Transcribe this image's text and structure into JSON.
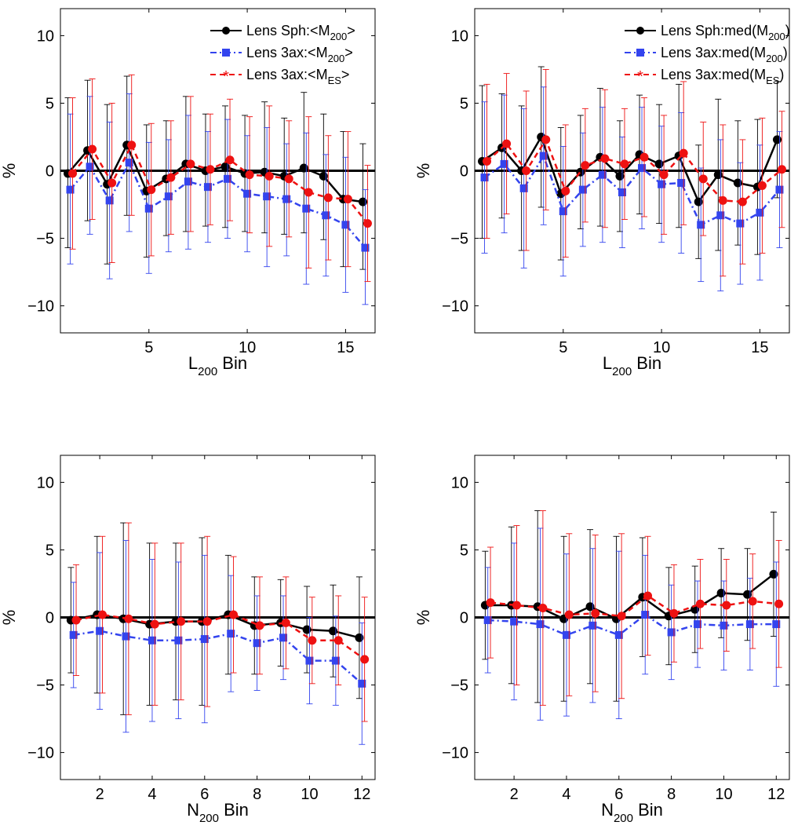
{
  "colors": {
    "black": "#000000",
    "blue": "#3344ee",
    "red": "#ee1111"
  },
  "chart_data": [
    {
      "type": "line",
      "panel": "top-left",
      "xlabel": "L",
      "xlabel_sub": "200",
      "xlabel_suffix": " Bin",
      "ylabel": "%",
      "xlim": [
        0.5,
        16.5
      ],
      "ylim": [
        -12,
        12
      ],
      "xticks": [
        5,
        10,
        15
      ],
      "yticks": [
        -10,
        -5,
        0,
        5,
        10
      ],
      "legend_position": "top-right",
      "series": [
        {
          "name": "Lens Sph:<M200>",
          "legend_main": "Lens Sph:<M",
          "legend_sub": "200",
          "legend_tail": ">",
          "color": "#000000",
          "marker": "circle",
          "linestyle": "solid",
          "offset": -0.12,
          "x": [
            1,
            2,
            3,
            4,
            5,
            6,
            7,
            8,
            9,
            10,
            11,
            12,
            13,
            14,
            15,
            16
          ],
          "y": [
            -0.2,
            1.5,
            -1.0,
            1.9,
            -1.5,
            -0.6,
            0.5,
            0.0,
            0.3,
            -0.2,
            -0.1,
            -0.4,
            0.2,
            -0.4,
            -2.1,
            -2.3
          ],
          "err_low": [
            5.5,
            5.2,
            5.9,
            5.2,
            4.9,
            4.2,
            5.0,
            4.1,
            4.5,
            4.3,
            4.5,
            4.3,
            4.8,
            4.7,
            5.0,
            5.0
          ],
          "err_high": [
            5.6,
            5.2,
            5.9,
            5.1,
            4.9,
            4.3,
            5.0,
            4.2,
            4.5,
            4.3,
            5.2,
            4.3,
            5.6,
            4.6,
            5.0,
            4.3
          ]
        },
        {
          "name": "Lens 3ax:<M200>",
          "legend_main": "Lens 3ax:<M",
          "legend_sub": "200",
          "legend_tail": ">",
          "color": "#3344ee",
          "marker": "square",
          "linestyle": "dashdot",
          "offset": 0,
          "x": [
            1,
            2,
            3,
            4,
            5,
            6,
            7,
            8,
            9,
            10,
            11,
            12,
            13,
            14,
            15,
            16
          ],
          "y": [
            -1.4,
            0.3,
            -2.2,
            0.6,
            -2.8,
            -1.9,
            -0.8,
            -1.2,
            -0.6,
            -1.7,
            -1.9,
            -2.1,
            -2.8,
            -3.3,
            -4.0,
            -5.7
          ],
          "err_low": [
            5.5,
            5.0,
            5.8,
            5.1,
            4.8,
            4.1,
            5.0,
            4.1,
            4.4,
            4.3,
            5.2,
            4.2,
            5.6,
            4.5,
            5.0,
            4.2
          ],
          "err_high": [
            5.6,
            5.2,
            5.8,
            5.1,
            4.9,
            4.2,
            4.9,
            4.1,
            4.4,
            4.3,
            5.1,
            4.1,
            5.6,
            4.5,
            5.0,
            4.3
          ]
        },
        {
          "name": "Lens 3ax:<MES>",
          "legend_main": "Lens 3ax:<M",
          "legend_sub": "ES",
          "legend_tail": ">",
          "color": "#ee1111",
          "marker": "circle",
          "linestyle": "dashed",
          "offset": 0.12,
          "x": [
            1,
            2,
            3,
            4,
            5,
            6,
            7,
            8,
            9,
            10,
            11,
            12,
            13,
            14,
            15,
            16
          ],
          "y": [
            -0.2,
            1.6,
            -0.9,
            1.9,
            -1.4,
            -0.5,
            0.5,
            0.1,
            0.8,
            -0.3,
            -0.4,
            -0.6,
            -1.6,
            -2.0,
            -2.1,
            -3.9
          ],
          "err_low": [
            5.6,
            5.2,
            5.9,
            5.2,
            4.9,
            4.2,
            5.0,
            4.1,
            4.5,
            4.3,
            5.2,
            4.3,
            5.6,
            4.6,
            5.0,
            4.3
          ],
          "err_high": [
            5.6,
            5.2,
            5.9,
            5.2,
            4.9,
            4.2,
            5.0,
            4.1,
            4.5,
            4.3,
            5.2,
            4.3,
            5.6,
            4.6,
            5.0,
            4.3
          ]
        }
      ]
    },
    {
      "type": "line",
      "panel": "top-right",
      "xlabel": "L",
      "xlabel_sub": "200",
      "xlabel_suffix": " Bin",
      "ylabel": "%",
      "xlim": [
        0.5,
        16.5
      ],
      "ylim": [
        -12,
        12
      ],
      "xticks": [
        5,
        10,
        15
      ],
      "yticks": [
        -10,
        -5,
        0,
        5,
        10
      ],
      "legend_position": "top-right",
      "series": [
        {
          "name": "Lens Sph:med(M200)",
          "legend_main": "Lens Sph:med(M",
          "legend_sub": "200",
          "legend_tail": ")",
          "color": "#000000",
          "marker": "circle",
          "linestyle": "solid",
          "offset": -0.12,
          "x": [
            1,
            2,
            3,
            4,
            5,
            6,
            7,
            8,
            9,
            10,
            11,
            12,
            13,
            14,
            15,
            16
          ],
          "y": [
            0.7,
            1.7,
            0.0,
            2.5,
            -1.7,
            -0.1,
            1.0,
            -0.4,
            1.2,
            0.5,
            1.1,
            -2.3,
            -0.3,
            -0.9,
            -1.2,
            2.3
          ],
          "err_low": [
            5.7,
            5.2,
            5.9,
            5.2,
            4.9,
            4.2,
            5.1,
            4.1,
            4.4,
            4.4,
            5.3,
            4.2,
            5.6,
            4.6,
            5.0,
            4.3
          ],
          "err_high": [
            5.6,
            4.0,
            4.8,
            5.2,
            4.9,
            4.2,
            5.1,
            4.1,
            4.4,
            4.4,
            5.3,
            4.2,
            5.6,
            4.6,
            5.0,
            4.3
          ]
        },
        {
          "name": "Lens 3ax:med(M200)",
          "legend_main": "Lens 3ax:med(M",
          "legend_sub": "200",
          "legend_tail": ")",
          "color": "#3344ee",
          "marker": "square",
          "linestyle": "dashdot",
          "offset": 0,
          "x": [
            1,
            2,
            3,
            4,
            5,
            6,
            7,
            8,
            9,
            10,
            11,
            12,
            13,
            14,
            15,
            16
          ],
          "y": [
            -0.5,
            0.5,
            -1.3,
            1.1,
            -3.0,
            -1.4,
            -0.3,
            -1.6,
            0.2,
            -1.0,
            -0.9,
            -4.0,
            -3.3,
            -3.9,
            -3.1,
            -1.4
          ],
          "err_low": [
            5.6,
            5.1,
            5.9,
            5.1,
            4.8,
            4.2,
            5.0,
            4.1,
            4.5,
            4.3,
            5.2,
            4.2,
            5.6,
            4.5,
            5.0,
            4.3
          ],
          "err_high": [
            5.6,
            5.1,
            5.9,
            5.1,
            4.8,
            4.2,
            5.0,
            4.1,
            4.5,
            4.3,
            5.2,
            4.2,
            5.6,
            4.5,
            5.0,
            4.3
          ]
        },
        {
          "name": "Lens 3ax:med(MES)",
          "legend_main": "Lens 3ax:med(M",
          "legend_sub": "ES",
          "legend_tail": ")",
          "color": "#ee1111",
          "marker": "circle",
          "linestyle": "dashed",
          "offset": 0.12,
          "x": [
            1,
            2,
            3,
            4,
            5,
            6,
            7,
            8,
            9,
            10,
            11,
            12,
            13,
            14,
            15,
            16
          ],
          "y": [
            0.7,
            2.0,
            0.0,
            2.3,
            -1.5,
            0.4,
            0.9,
            0.5,
            1.0,
            -0.3,
            1.3,
            -0.6,
            -2.2,
            -2.3,
            -1.1,
            0.1
          ],
          "err_low": [
            5.7,
            5.2,
            5.9,
            5.2,
            4.9,
            4.2,
            5.1,
            4.1,
            4.4,
            4.4,
            5.3,
            4.2,
            5.6,
            4.6,
            5.0,
            4.3
          ],
          "err_high": [
            5.7,
            5.2,
            5.9,
            5.2,
            4.9,
            4.2,
            5.1,
            4.1,
            4.4,
            4.4,
            5.3,
            4.2,
            5.6,
            4.6,
            5.0,
            4.3
          ]
        }
      ]
    },
    {
      "type": "line",
      "panel": "bottom-left",
      "xlabel": "N",
      "xlabel_sub": "200",
      "xlabel_suffix": " Bin",
      "ylabel": "%",
      "xlim": [
        0.5,
        12.5
      ],
      "ylim": [
        -12,
        12
      ],
      "xticks": [
        2,
        4,
        6,
        8,
        10,
        12
      ],
      "yticks": [
        -10,
        -5,
        0,
        5,
        10
      ],
      "legend_position": "none",
      "series": [
        {
          "name": "Lens Sph:<M200>",
          "color": "#000000",
          "marker": "circle",
          "linestyle": "solid",
          "offset": -0.1,
          "x": [
            1,
            2,
            3,
            4,
            5,
            6,
            7,
            8,
            9,
            10,
            11,
            12
          ],
          "y": [
            -0.2,
            0.2,
            -0.1,
            -0.5,
            -0.3,
            -0.3,
            0.2,
            -0.6,
            -0.4,
            -0.9,
            -1.0,
            -1.5
          ],
          "err_low": [
            3.9,
            5.8,
            7.1,
            6.0,
            5.8,
            6.2,
            4.4,
            3.6,
            3.2,
            3.2,
            3.4,
            4.5
          ],
          "err_high": [
            3.9,
            5.8,
            7.1,
            6.0,
            5.8,
            6.2,
            4.4,
            3.6,
            3.2,
            3.2,
            3.4,
            4.5
          ]
        },
        {
          "name": "Lens 3ax:<M200>",
          "color": "#3344ee",
          "marker": "square",
          "linestyle": "dashdot",
          "offset": 0,
          "x": [
            1,
            2,
            3,
            4,
            5,
            6,
            7,
            8,
            9,
            10,
            11,
            12
          ],
          "y": [
            -1.3,
            -1.0,
            -1.4,
            -1.7,
            -1.7,
            -1.6,
            -1.2,
            -1.9,
            -1.5,
            -3.2,
            -3.2,
            -4.9
          ],
          "err_low": [
            3.9,
            5.8,
            7.1,
            6.0,
            5.8,
            6.2,
            4.3,
            3.5,
            3.1,
            3.2,
            3.3,
            4.5
          ],
          "err_high": [
            3.9,
            5.8,
            7.1,
            6.0,
            5.8,
            6.2,
            4.3,
            3.5,
            3.1,
            3.2,
            3.3,
            4.5
          ]
        },
        {
          "name": "Lens 3ax:<MES>",
          "color": "#ee1111",
          "marker": "circle",
          "linestyle": "dashed",
          "offset": 0.1,
          "x": [
            1,
            2,
            3,
            4,
            5,
            6,
            7,
            8,
            9,
            10,
            11,
            12
          ],
          "y": [
            -0.2,
            0.2,
            -0.1,
            -0.5,
            -0.3,
            -0.3,
            0.2,
            -0.6,
            -0.4,
            -1.7,
            -1.7,
            -3.1
          ],
          "err_low": [
            4.1,
            5.8,
            7.1,
            6.0,
            5.8,
            6.3,
            4.3,
            3.6,
            3.4,
            3.2,
            3.3,
            4.6
          ],
          "err_high": [
            4.1,
            5.8,
            7.1,
            6.0,
            5.8,
            6.3,
            4.3,
            3.6,
            3.4,
            3.2,
            3.3,
            4.6
          ]
        }
      ]
    },
    {
      "type": "line",
      "panel": "bottom-right",
      "xlabel": "N",
      "xlabel_sub": "200",
      "xlabel_suffix": " Bin",
      "ylabel": "%",
      "xlim": [
        0.5,
        12.5
      ],
      "ylim": [
        -12,
        12
      ],
      "xticks": [
        2,
        4,
        6,
        8,
        10,
        12
      ],
      "yticks": [
        -10,
        -5,
        0,
        5,
        10
      ],
      "legend_position": "none",
      "series": [
        {
          "name": "Lens Sph:med(M200)",
          "color": "#000000",
          "marker": "circle",
          "linestyle": "solid",
          "offset": -0.1,
          "x": [
            1,
            2,
            3,
            4,
            5,
            6,
            7,
            8,
            9,
            10,
            11,
            12
          ],
          "y": [
            0.9,
            0.9,
            0.8,
            -0.1,
            0.8,
            -0.1,
            1.5,
            0.1,
            0.6,
            1.8,
            1.7,
            3.2
          ],
          "err_low": [
            4.0,
            5.8,
            7.1,
            6.1,
            5.7,
            6.1,
            4.4,
            3.6,
            3.2,
            3.3,
            3.4,
            4.6
          ],
          "err_high": [
            4.0,
            5.8,
            7.1,
            6.1,
            5.7,
            6.1,
            4.4,
            3.6,
            3.2,
            3.3,
            3.4,
            4.6
          ]
        },
        {
          "name": "Lens 3ax:med(M200)",
          "color": "#3344ee",
          "marker": "square",
          "linestyle": "dashdot",
          "offset": 0,
          "x": [
            1,
            2,
            3,
            4,
            5,
            6,
            7,
            8,
            9,
            10,
            11,
            12
          ],
          "y": [
            -0.2,
            -0.3,
            -0.5,
            -1.3,
            -0.6,
            -1.3,
            0.2,
            -1.1,
            -0.5,
            -0.6,
            -0.5,
            -0.5
          ],
          "err_low": [
            3.9,
            5.8,
            7.1,
            6.0,
            5.7,
            6.2,
            4.4,
            3.5,
            3.2,
            3.3,
            3.4,
            4.6
          ],
          "err_high": [
            3.9,
            5.8,
            7.1,
            6.0,
            5.7,
            6.2,
            4.4,
            3.5,
            3.2,
            3.3,
            3.4,
            4.6
          ]
        },
        {
          "name": "Lens 3ax:med(MES)",
          "color": "#ee1111",
          "marker": "circle",
          "linestyle": "dashed",
          "offset": 0.1,
          "x": [
            1,
            2,
            3,
            4,
            5,
            6,
            7,
            8,
            9,
            10,
            11,
            12
          ],
          "y": [
            1.1,
            0.9,
            0.7,
            0.2,
            0.3,
            0.1,
            1.6,
            0.3,
            1.0,
            0.9,
            1.2,
            1.0
          ],
          "err_low": [
            4.1,
            5.9,
            7.2,
            6.0,
            5.8,
            6.1,
            4.4,
            3.6,
            3.3,
            3.4,
            3.5,
            4.7
          ],
          "err_high": [
            4.1,
            5.9,
            7.2,
            6.0,
            5.8,
            6.1,
            4.4,
            3.6,
            3.3,
            3.4,
            3.5,
            4.7
          ]
        }
      ]
    }
  ]
}
